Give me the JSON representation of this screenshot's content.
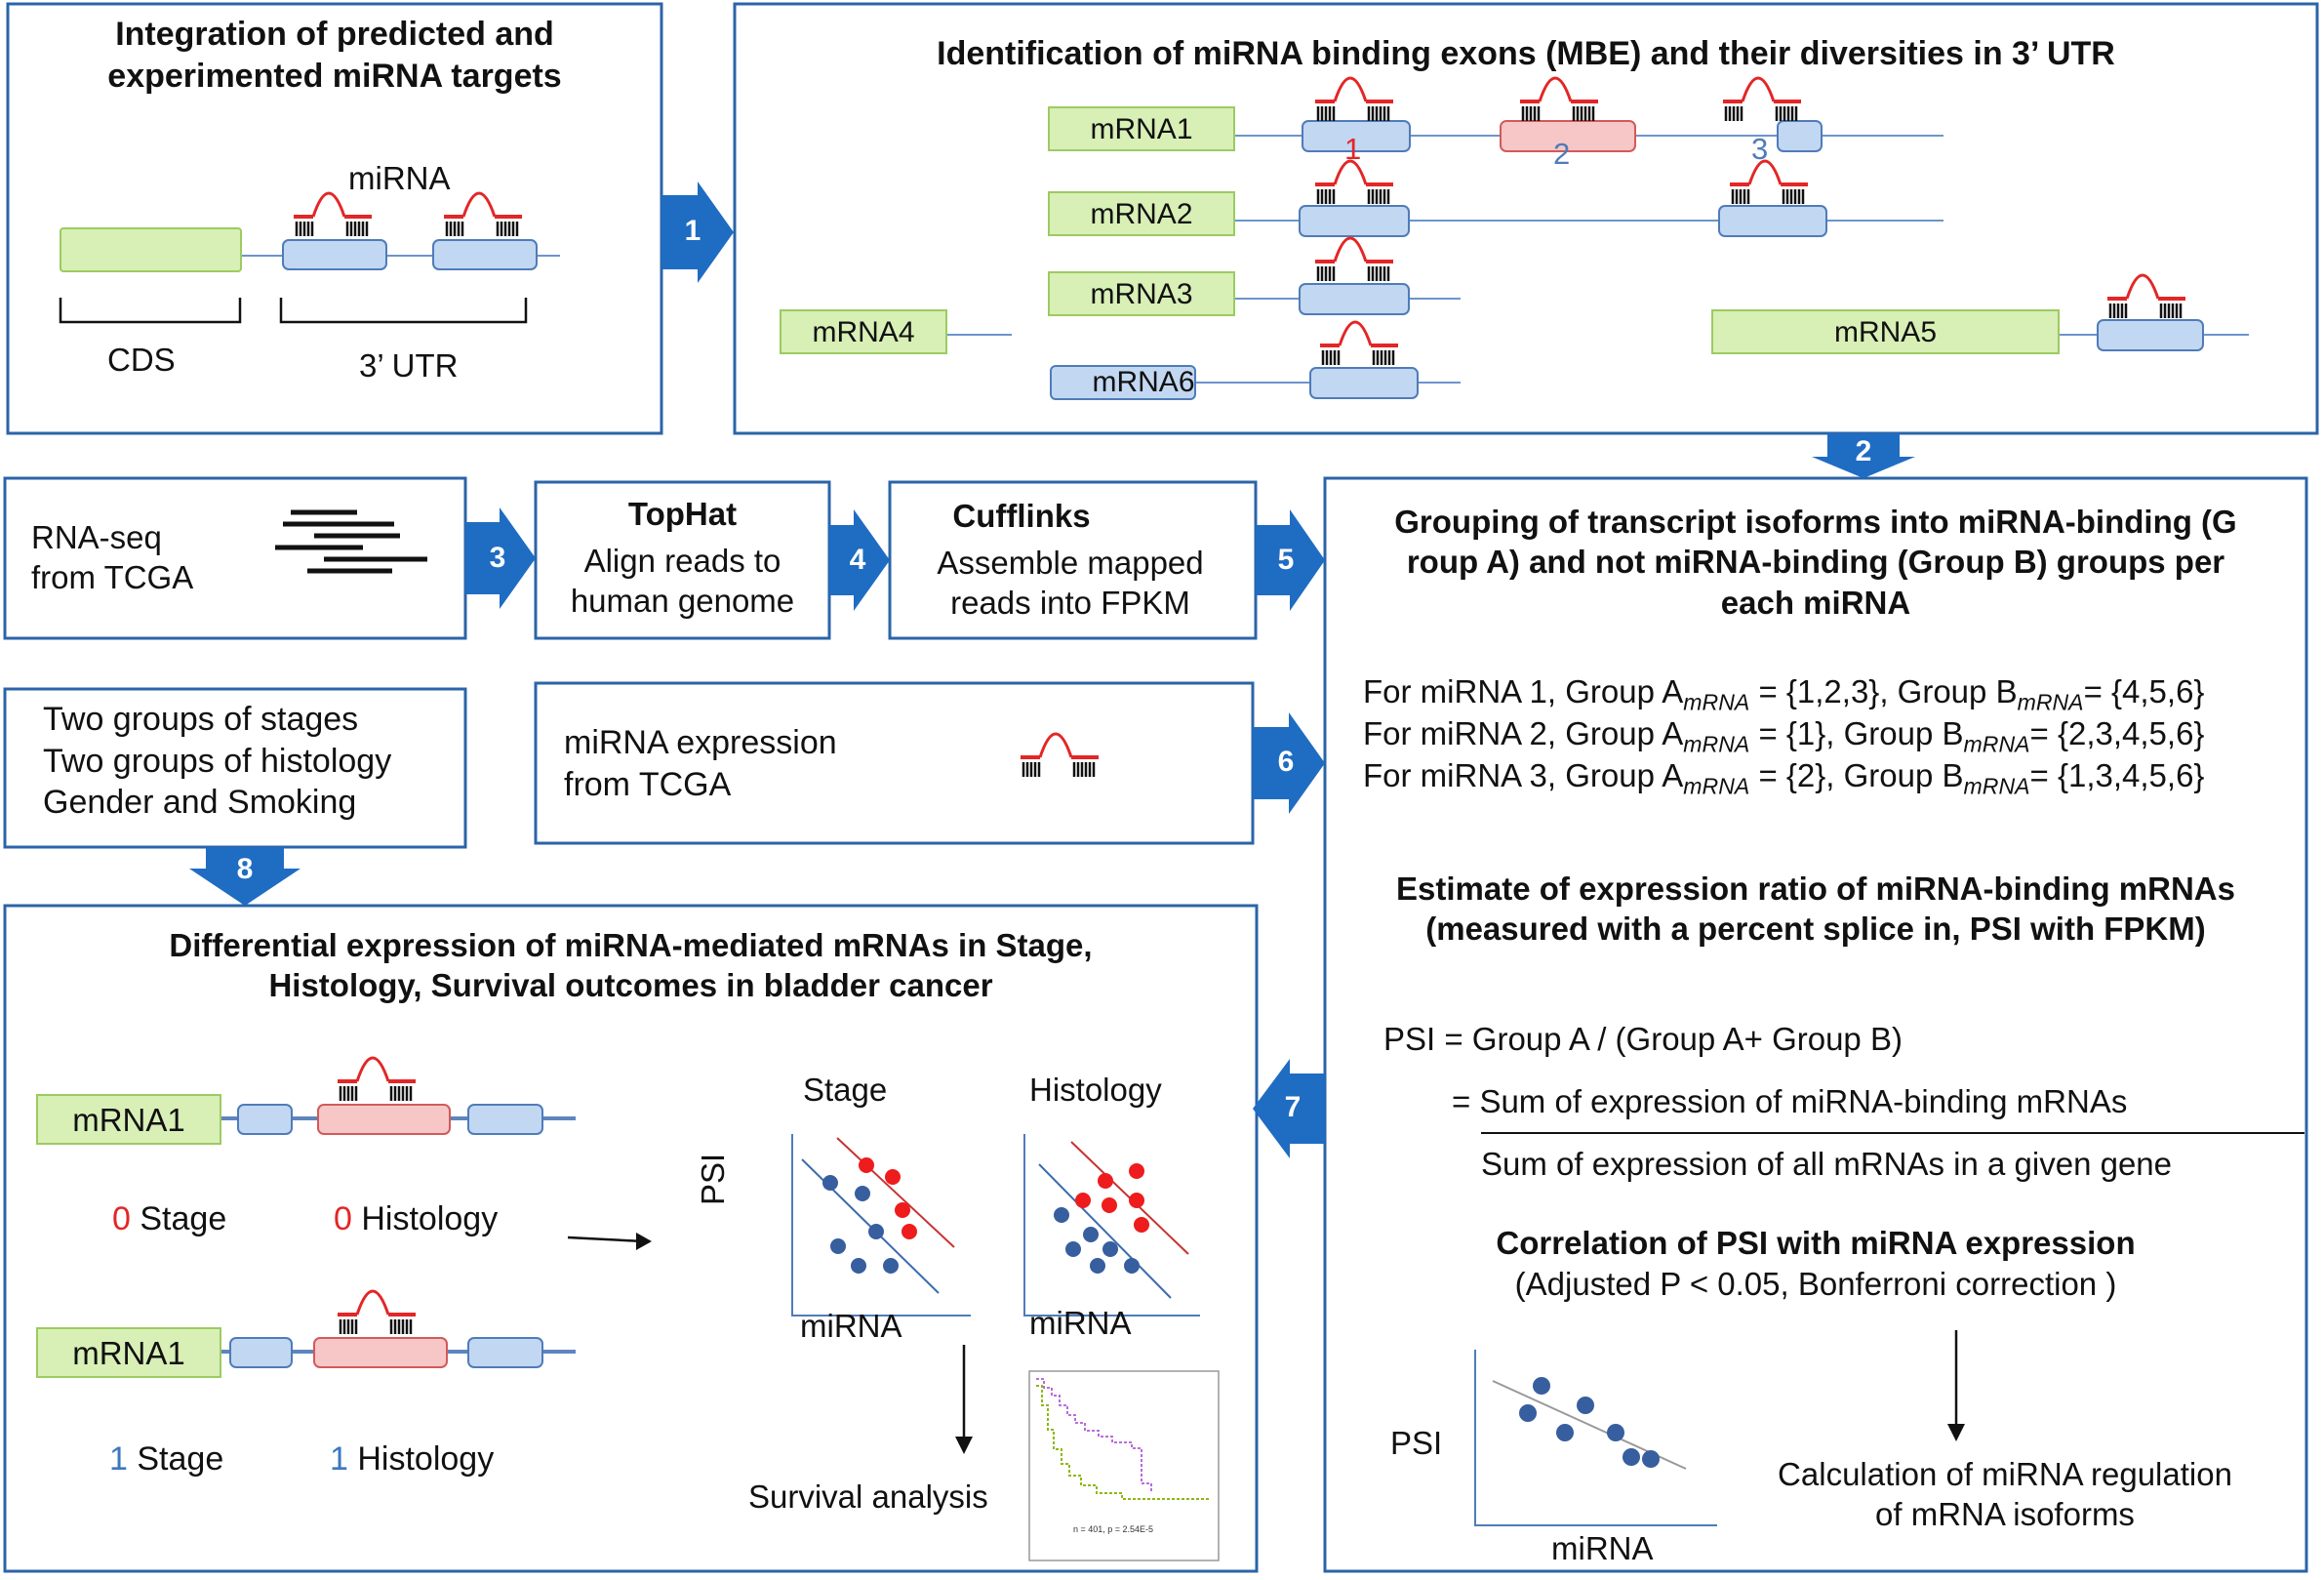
{
  "steps": [
    "1",
    "2",
    "3",
    "4",
    "5",
    "6",
    "7",
    "8"
  ],
  "integration": {
    "title_line1": "Integration of predicted and",
    "title_line2": "experimented miRNA targets",
    "mirna_label": "miRNA",
    "cds_label": "CDS",
    "utr_label": "3’ UTR"
  },
  "mbe": {
    "title": "Identification of miRNA binding exons (MBE) and their diversities in 3’ UTR",
    "mrnas": [
      "mRNA1",
      "mRNA2",
      "mRNA3",
      "mRNA4",
      "mRNA5",
      "mRNA6"
    ],
    "mbe_labels": [
      "1",
      "2",
      "3"
    ]
  },
  "rnaseq": {
    "line1": "RNA-seq",
    "line2": "from TCGA"
  },
  "tophat": {
    "title": "TopHat",
    "line1": "Align reads to",
    "line2": "human genome"
  },
  "cufflinks": {
    "title": "Cufflinks",
    "line1": "Assemble mapped",
    "line2": "reads into FPKM"
  },
  "groups": {
    "line1": "Two groups of stages",
    "line2": "Two groups of histology",
    "line3": "Gender and Smoking"
  },
  "mirna_expression": {
    "line1": "miRNA expression",
    "line2": "from TCGA"
  },
  "grouping": {
    "title_line1": "Grouping of transcript isoforms into miRNA-binding (G",
    "title_line2": "roup A) and not miRNA-binding (Group B) groups per",
    "title_line3": "each miRNA",
    "rows": [
      {
        "prefix": "For miRNA 1, Group ",
        "subscript": "mRNA",
        "mid": " = {1,2,3}, Group ",
        "suffix": "= {4,5,6}"
      },
      {
        "prefix": "For miRNA 2, Group ",
        "subscript": "mRNA",
        "mid": " = {1}, Group ",
        "suffix": "= {2,3,4,5,6}"
      },
      {
        "prefix": "For miRNA 3, Group ",
        "subscript": "mRNA",
        "mid": " = {2}, Group ",
        "suffix": "= {1,3,4,5,6}"
      }
    ]
  },
  "estimate": {
    "line1": "Estimate of expression ratio of miRNA-binding mRNAs",
    "line2": "(measured with a percent splice in, PSI with FPKM)",
    "equation": "PSI = Group A / (Group A+ Group B)",
    "numerator": "= Sum of expression of miRNA-binding mRNAs",
    "denominator": "Sum of expression of all mRNAs in a given gene"
  },
  "correlation": {
    "title": "Correlation of PSI with miRNA expression",
    "subtitle": "(Adjusted P < 0.05, Bonferroni correction )",
    "ylabel": "PSI",
    "xlabel": "miRNA",
    "calc_line1": "Calculation of miRNA regulation",
    "calc_line2": "of mRNA isoforms"
  },
  "differential": {
    "title_line1": "Differential expression of miRNA-mediated mRNAs in Stage,",
    "title_line2": "Histology, Survival outcomes in bladder cancer",
    "stage_word": "Stage",
    "histology_word": "Histology",
    "transcripts": [
      {
        "label": "mRNA1",
        "stage_value": "0",
        "histology_value": "0"
      },
      {
        "label": "mRNA1",
        "stage_value": "1",
        "histology_value": "1"
      }
    ],
    "plots": {
      "stage_title": "Stage",
      "histology_title": "Histology",
      "ylabel": "PSI",
      "xlabel": "miRNA"
    },
    "survival_label": "Survival analysis",
    "survival_stat": "n = 401, p = 2.54E-5"
  },
  "colors": {
    "box_border": "#2b64a8",
    "arrow": "#1f6cc3",
    "mrna_fill": "#d8efb6",
    "exon_fill": "#c2d7f1",
    "mbe_fill": "#f7c7c7",
    "mirna_red": "#e32626"
  }
}
